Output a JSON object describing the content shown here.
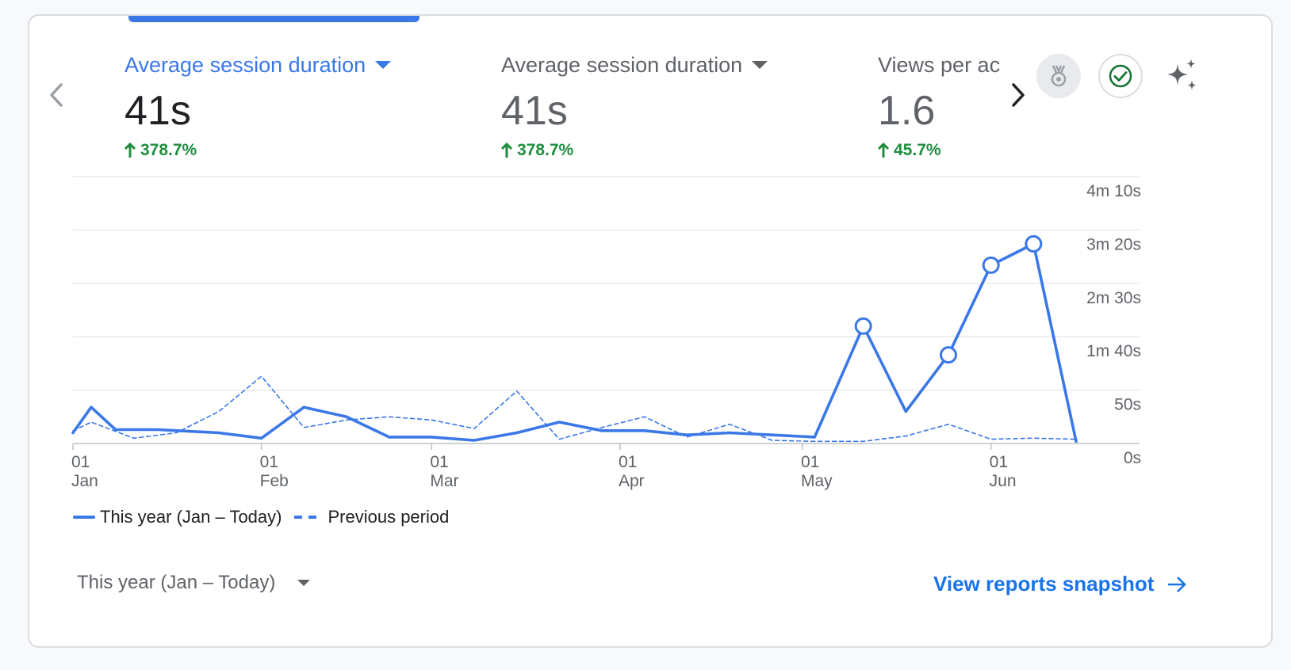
{
  "nav": {
    "prev_icon": "chevron-left-icon",
    "next_icon": "chevron-right-icon"
  },
  "metrics": [
    {
      "label": "Average session duration",
      "value": "41s",
      "change": "378.7%",
      "active": true
    },
    {
      "label": "Average session duration",
      "value": "41s",
      "change": "378.7%",
      "active": false
    },
    {
      "label": "Views per ac",
      "value": "1.6",
      "change": "45.7%",
      "active": false
    }
  ],
  "actions": {
    "award_icon": "award-medal-icon",
    "check_icon": "check-circle-icon",
    "sparkle_icon": "sparkle-icon"
  },
  "colors": {
    "accent": "#3b78e7",
    "positive": "#1e8e3e",
    "muted": "#5f6368",
    "link": "#1a73e8"
  },
  "legend": {
    "current": "This year (Jan – Today)",
    "previous": "Previous period"
  },
  "footer": {
    "date_range": "This year (Jan – Today)",
    "snapshot_link": "View reports snapshot"
  },
  "chart_data": {
    "type": "line",
    "ylim": [
      0,
      250
    ],
    "y_tick_values": [
      0,
      50,
      100,
      150,
      200,
      250
    ],
    "y_tick_labels": [
      "0s",
      "50s",
      "1m 40s",
      "2m 30s",
      "3m 20s",
      "4m 10s"
    ],
    "x_tick_days": [
      1,
      32,
      60,
      91,
      121,
      152
    ],
    "x_tick_labels": [
      [
        "01",
        "Jan"
      ],
      [
        "01",
        "Feb"
      ],
      [
        "01",
        "Mar"
      ],
      [
        "01",
        "Apr"
      ],
      [
        "01",
        "May"
      ],
      [
        "01",
        "Jun"
      ]
    ],
    "grid": true,
    "legend_position": "bottom-left",
    "series": [
      {
        "name": "This year (Jan – Today)",
        "style": "solid",
        "points": [
          [
            1,
            10
          ],
          [
            4,
            34
          ],
          [
            8,
            13
          ],
          [
            15,
            13
          ],
          [
            25,
            10
          ],
          [
            32,
            5
          ],
          [
            39,
            34
          ],
          [
            46,
            25
          ],
          [
            53,
            6
          ],
          [
            60,
            6
          ],
          [
            67,
            3
          ],
          [
            74,
            10
          ],
          [
            81,
            20
          ],
          [
            88,
            12
          ],
          [
            95,
            12
          ],
          [
            102,
            8
          ],
          [
            109,
            10
          ],
          [
            116,
            8
          ],
          [
            123,
            6
          ],
          [
            131,
            110
          ],
          [
            138,
            30
          ],
          [
            145,
            83
          ],
          [
            152,
            167
          ],
          [
            159,
            187
          ],
          [
            166,
            2
          ]
        ],
        "markers": [
          [
            131,
            110
          ],
          [
            145,
            83
          ],
          [
            152,
            167
          ],
          [
            159,
            187
          ]
        ]
      },
      {
        "name": "Previous period",
        "style": "dashed",
        "points": [
          [
            1,
            12
          ],
          [
            4,
            20
          ],
          [
            11,
            5
          ],
          [
            18,
            10
          ],
          [
            25,
            30
          ],
          [
            32,
            63
          ],
          [
            39,
            15
          ],
          [
            46,
            22
          ],
          [
            53,
            25
          ],
          [
            60,
            22
          ],
          [
            67,
            14
          ],
          [
            74,
            49
          ],
          [
            81,
            4
          ],
          [
            88,
            15
          ],
          [
            95,
            25
          ],
          [
            102,
            6
          ],
          [
            109,
            18
          ],
          [
            116,
            3
          ],
          [
            123,
            2
          ],
          [
            131,
            2
          ],
          [
            138,
            7
          ],
          [
            145,
            18
          ],
          [
            152,
            4
          ],
          [
            159,
            5
          ],
          [
            166,
            4
          ]
        ]
      }
    ]
  }
}
